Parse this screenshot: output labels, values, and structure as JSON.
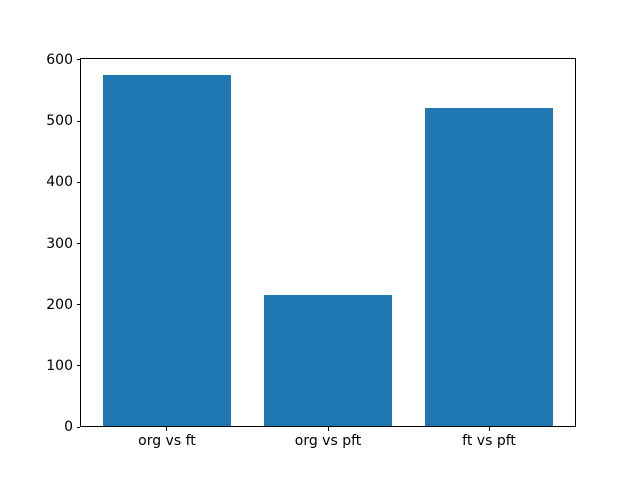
{
  "figure": {
    "background": "#ffffff",
    "spine_color": "#000000",
    "tick_color": "#000000"
  },
  "chart_data": {
    "type": "bar",
    "title": "",
    "xlabel": "",
    "ylabel": "",
    "categories": [
      "org vs ft",
      "org vs pft",
      "ft vs pft"
    ],
    "values": [
      575,
      216,
      522
    ],
    "bar_color": "#1f77b4",
    "bar_width_fraction": 0.8,
    "ylim": [
      0,
      603.75
    ],
    "yticks": [
      0,
      100,
      200,
      300,
      400,
      500,
      600
    ],
    "ytick_labels": [
      "0",
      "100",
      "200",
      "300",
      "400",
      "500",
      "600"
    ],
    "grid": false,
    "legend": "none"
  }
}
